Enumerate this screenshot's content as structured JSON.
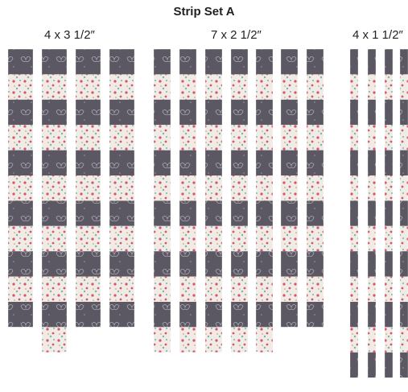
{
  "title": "Strip Set A",
  "colors": {
    "dark_fabric": "#5b5763",
    "floral_fabric": "#f1ebe6",
    "floral_pink": "#d9536b",
    "floral_teal": "#79b3ab",
    "butterfly": "#cfcbd2"
  },
  "groups": [
    {
      "label": "4 x 3 1/2″",
      "strips": [
        {
          "squares": 11,
          "start": "dark"
        },
        {
          "squares": 12,
          "start": "dark"
        },
        {
          "squares": 11,
          "start": "dark"
        },
        {
          "squares": 11,
          "start": "dark"
        }
      ]
    },
    {
      "label": "7 x 2 1/2″",
      "strips": [
        {
          "squares": 12,
          "start": "dark"
        },
        {
          "squares": 12,
          "start": "dark"
        },
        {
          "squares": 12,
          "start": "dark"
        },
        {
          "squares": 12,
          "start": "dark"
        },
        {
          "squares": 12,
          "start": "dark"
        },
        {
          "squares": 11,
          "start": "dark"
        },
        {
          "squares": 11,
          "start": "dark"
        }
      ]
    },
    {
      "label": "4 x 1 1/2″",
      "strips": [
        {
          "squares": 13,
          "start": "dark"
        },
        {
          "squares": 13,
          "start": "dark"
        },
        {
          "squares": 13,
          "start": "dark"
        },
        {
          "squares": 13,
          "start": "dark"
        }
      ]
    }
  ]
}
